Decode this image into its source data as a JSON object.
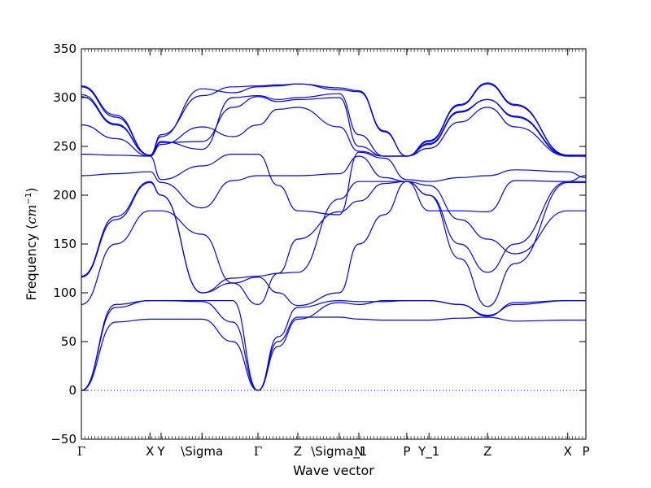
{
  "chart_data": {
    "type": "line",
    "xlabel": "Wave vector",
    "ylabel": "Frequency ($cm^{-1}$)",
    "ylabel_text": "Frequency (",
    "ylabel_unit": "cm",
    "ylabel_exp": "−1",
    "ylabel_close": ")",
    "ylim": [
      -50,
      350
    ],
    "yticks": [
      -50,
      0,
      50,
      100,
      150,
      200,
      250,
      300,
      350
    ],
    "grid": false,
    "line_color": "#0000ff",
    "zero_line_color": "#0000ff",
    "path_length": 1.0,
    "xticks": [
      {
        "label": "Γ",
        "x": 0.0
      },
      {
        "label": "X",
        "x": 0.136
      },
      {
        "label": "Y",
        "x": 0.158
      },
      {
        "label": "\\Sigma",
        "x": 0.239
      },
      {
        "label": "Γ",
        "x": 0.35
      },
      {
        "label": "Z",
        "x": 0.429
      },
      {
        "label": "\\Sigma_1",
        "x": 0.511
      },
      {
        "label": "N",
        "x": 0.55
      },
      {
        "label": "P",
        "x": 0.645
      },
      {
        "label": "Y_1",
        "x": 0.689
      },
      {
        "label": "Z",
        "x": 0.805
      },
      {
        "label": "X",
        "x": 0.964
      },
      {
        "label": "P",
        "x": 1.0
      }
    ],
    "series": [
      {
        "x": [
          0.0,
          0.068,
          0.136,
          0.158,
          0.239,
          0.3,
          0.35,
          0.39,
          0.429,
          0.511,
          0.55,
          0.6,
          0.645,
          0.689,
          0.75,
          0.805,
          0.86,
          0.964,
          1.0
        ],
        "values": [
          0,
          88,
          92,
          92,
          92,
          92,
          0,
          55,
          85,
          92,
          91,
          91,
          92,
          92,
          88,
          76,
          90,
          92,
          92
        ]
      },
      {
        "x": [
          0.0,
          0.068,
          0.136,
          0.158,
          0.239,
          0.3,
          0.35,
          0.39,
          0.429,
          0.511,
          0.55,
          0.6,
          0.645,
          0.689,
          0.75,
          0.805,
          0.86,
          0.964,
          1.0
        ],
        "values": [
          0,
          70,
          73,
          73,
          73,
          50,
          0,
          50,
          75,
          75,
          73,
          72,
          72,
          72,
          74,
          75,
          71,
          72,
          72
        ]
      },
      {
        "x": [
          0.0,
          0.068,
          0.136,
          0.158,
          0.239,
          0.3,
          0.35,
          0.39,
          0.429,
          0.511,
          0.55,
          0.6,
          0.645,
          0.689,
          0.75,
          0.805,
          0.86,
          0.964,
          1.0
        ],
        "values": [
          0,
          85,
          92,
          92,
          91,
          70,
          0,
          45,
          73,
          90,
          88,
          92,
          92,
          92,
          88,
          77,
          88,
          92,
          92
        ]
      },
      {
        "x": [
          0.0,
          0.068,
          0.136,
          0.158,
          0.239,
          0.3,
          0.35,
          0.39,
          0.429,
          0.511,
          0.55,
          0.6,
          0.645,
          0.689,
          0.75,
          0.805,
          0.86,
          0.964,
          1.0
        ],
        "values": [
          88,
          150,
          184,
          184,
          160,
          110,
          88,
          120,
          155,
          183,
          194,
          212,
          214,
          210,
          175,
          155,
          140,
          184,
          184
        ]
      },
      {
        "x": [
          0.0,
          0.068,
          0.136,
          0.158,
          0.239,
          0.3,
          0.35,
          0.39,
          0.429,
          0.511,
          0.55,
          0.6,
          0.645,
          0.689,
          0.75,
          0.805,
          0.86,
          0.964,
          1.0
        ],
        "values": [
          116,
          175,
          213,
          200,
          100,
          110,
          116,
          100,
          87,
          100,
          150,
          180,
          214,
          200,
          135,
          86,
          130,
          213,
          213
        ]
      },
      {
        "x": [
          0.0,
          0.068,
          0.136,
          0.158,
          0.239,
          0.3,
          0.35,
          0.39,
          0.429,
          0.511,
          0.55,
          0.6,
          0.645,
          0.689,
          0.75,
          0.805,
          0.86,
          0.964,
          1.0
        ],
        "values": [
          117,
          178,
          214,
          200,
          100,
          115,
          117,
          120,
          121,
          196,
          214,
          214,
          214,
          200,
          150,
          121,
          150,
          214,
          214
        ]
      },
      {
        "x": [
          0.0,
          0.068,
          0.136,
          0.158,
          0.239,
          0.3,
          0.35,
          0.39,
          0.429,
          0.511,
          0.55,
          0.6,
          0.645,
          0.689,
          0.75,
          0.805,
          0.86,
          0.964,
          1.0
        ],
        "values": [
          220,
          222,
          224,
          213,
          187,
          215,
          220,
          220,
          220,
          222,
          240,
          218,
          214,
          184,
          184,
          183,
          215,
          214,
          220
        ]
      },
      {
        "x": [
          0.0,
          0.068,
          0.136,
          0.158,
          0.239,
          0.3,
          0.35,
          0.39,
          0.429,
          0.511,
          0.55,
          0.6,
          0.645,
          0.689,
          0.75,
          0.805,
          0.86,
          0.964,
          1.0
        ],
        "values": [
          242,
          241,
          240,
          216,
          230,
          242,
          242,
          210,
          184,
          180,
          244,
          238,
          216,
          214,
          218,
          220,
          226,
          224,
          218
        ]
      },
      {
        "x": [
          0.0,
          0.068,
          0.136,
          0.158,
          0.239,
          0.3,
          0.35,
          0.39,
          0.429,
          0.511,
          0.55,
          0.6,
          0.645,
          0.689,
          0.75,
          0.805,
          0.86,
          0.964,
          1.0
        ],
        "values": [
          272,
          258,
          240,
          252,
          270,
          260,
          272,
          288,
          290,
          270,
          245,
          240,
          240,
          248,
          275,
          290,
          270,
          240,
          240
        ]
      },
      {
        "x": [
          0.0,
          0.068,
          0.136,
          0.158,
          0.239,
          0.3,
          0.35,
          0.39,
          0.429,
          0.511,
          0.55,
          0.6,
          0.645,
          0.689,
          0.75,
          0.805,
          0.86,
          0.964,
          1.0
        ],
        "values": [
          301,
          272,
          241,
          254,
          255,
          290,
          301,
          296,
          298,
          300,
          250,
          240,
          240,
          252,
          285,
          298,
          280,
          240,
          240
        ]
      },
      {
        "x": [
          0.0,
          0.068,
          0.136,
          0.158,
          0.239,
          0.3,
          0.35,
          0.39,
          0.429,
          0.511,
          0.55,
          0.6,
          0.645,
          0.689,
          0.75,
          0.805,
          0.86,
          0.964,
          1.0
        ],
        "values": [
          303,
          273,
          241,
          255,
          247,
          300,
          302,
          298,
          300,
          304,
          262,
          240,
          240,
          253,
          286,
          298,
          281,
          241,
          241
        ]
      },
      {
        "x": [
          0.0,
          0.068,
          0.136,
          0.158,
          0.239,
          0.3,
          0.35,
          0.39,
          0.429,
          0.511,
          0.55,
          0.6,
          0.645,
          0.689,
          0.75,
          0.805,
          0.86,
          0.964,
          1.0
        ],
        "values": [
          311,
          280,
          241,
          260,
          309,
          305,
          311,
          312,
          314,
          308,
          306,
          265,
          240,
          255,
          292,
          314,
          292,
          241,
          240
        ]
      },
      {
        "x": [
          0.0,
          0.068,
          0.136,
          0.158,
          0.239,
          0.3,
          0.35,
          0.39,
          0.429,
          0.511,
          0.55,
          0.6,
          0.645,
          0.689,
          0.75,
          0.805,
          0.86,
          0.964,
          1.0
        ],
        "values": [
          312,
          282,
          241,
          262,
          302,
          311,
          312,
          313,
          314,
          310,
          307,
          266,
          240,
          256,
          293,
          315,
          293,
          241,
          241
        ]
      }
    ]
  }
}
